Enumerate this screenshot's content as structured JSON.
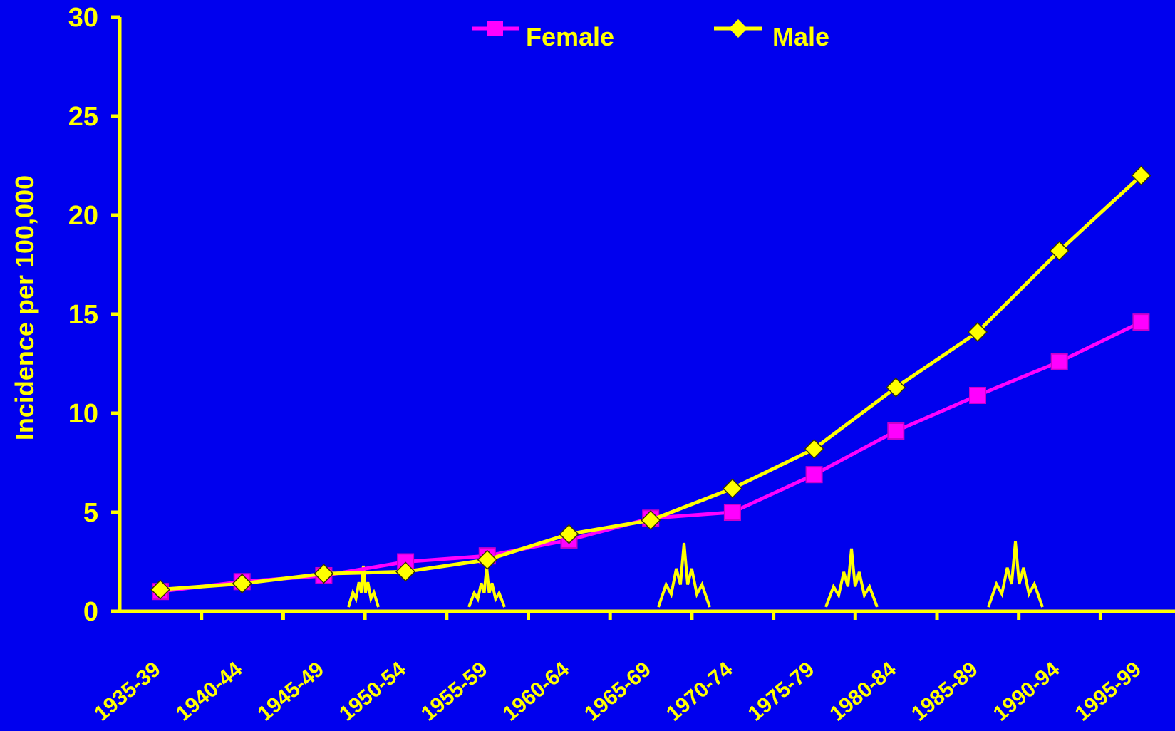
{
  "colors": {
    "background": "#0000ee",
    "axis": "#ffff00",
    "text": "#ffff00",
    "female": "#ff00ff",
    "male": "#ffff00"
  },
  "chart_data": {
    "type": "line",
    "title": "",
    "xlabel": "",
    "ylabel": "Incidence per 100,000",
    "ylim": [
      0,
      30
    ],
    "yticks": [
      "0",
      "5",
      "10",
      "15",
      "20",
      "25",
      "30"
    ],
    "grid": false,
    "legend_position": "top",
    "categories": [
      "1935-39",
      "1940-44",
      "1945-49",
      "1950-54",
      "1955-59",
      "1960-64",
      "1965-69",
      "1970-74",
      "1975-79",
      "1980-84",
      "1985-89",
      "1990-94",
      "1995-99"
    ],
    "series": [
      {
        "name": "Female",
        "marker": "square",
        "color": "#ff00ff",
        "values": [
          1.0,
          1.5,
          1.8,
          2.5,
          2.8,
          3.6,
          4.7,
          5.0,
          6.9,
          9.1,
          10.9,
          12.6,
          14.6
        ]
      },
      {
        "name": "Male",
        "marker": "diamond",
        "color": "#ffff00",
        "values": [
          1.1,
          1.4,
          1.9,
          2.0,
          2.6,
          3.9,
          4.6,
          6.2,
          8.2,
          11.3,
          14.1,
          18.2,
          22.0
        ]
      }
    ]
  }
}
